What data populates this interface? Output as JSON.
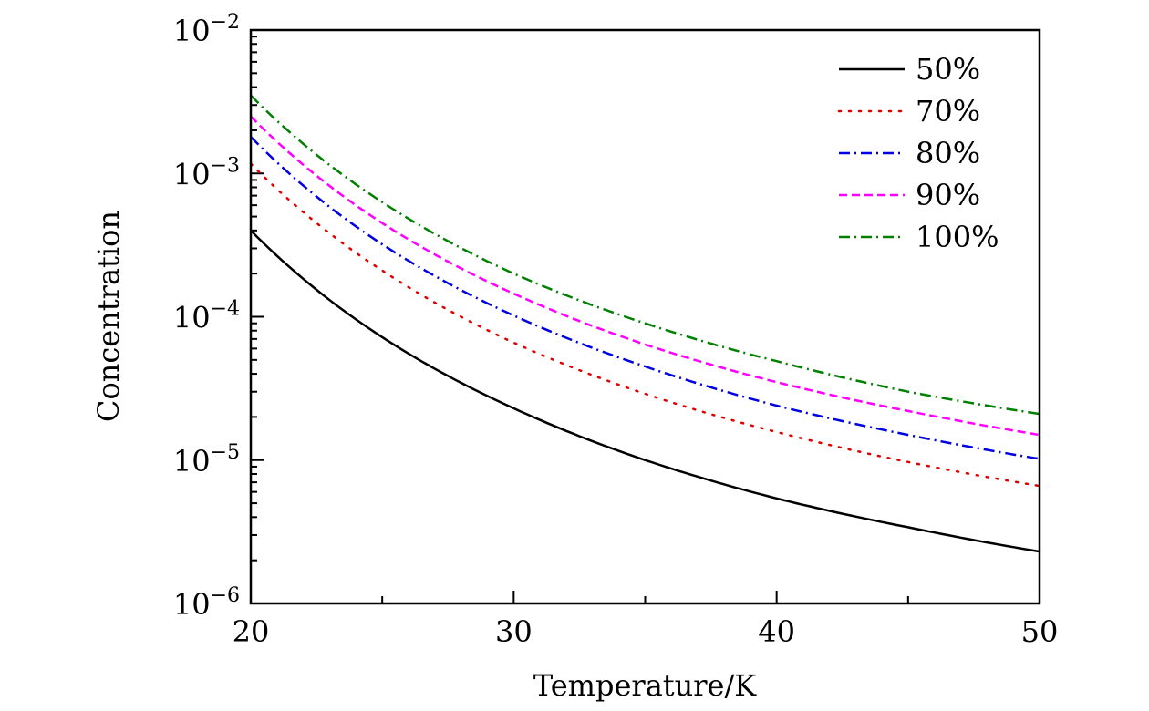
{
  "chart_data": {
    "type": "line",
    "title": "",
    "xlabel": "Temperature/K",
    "ylabel": "Concentration",
    "xlim": [
      20,
      50
    ],
    "ylim": [
      1e-06,
      0.01
    ],
    "yscale": "log",
    "x_ticks": [
      20,
      30,
      40,
      50
    ],
    "x_tick_labels": [
      "20",
      "30",
      "40",
      "50"
    ],
    "y_ticks": [
      -6,
      -5,
      -4,
      -3,
      -2
    ],
    "y_tick_labels": [
      {
        "base": "10",
        "exp": "−6"
      },
      {
        "base": "10",
        "exp": "−5"
      },
      {
        "base": "10",
        "exp": "−4"
      },
      {
        "base": "10",
        "exp": "−3"
      },
      {
        "base": "10",
        "exp": "−2"
      }
    ],
    "grid": false,
    "legend_position": "top-right",
    "x": [
      20,
      25,
      30,
      35,
      40,
      45,
      50
    ],
    "series": [
      {
        "name": "50%",
        "color": "#000000",
        "dash": "solid",
        "values": [
          0.0004,
          7.2e-05,
          2.3e-05,
          1e-05,
          5.4e-06,
          3.4e-06,
          2.3e-06
        ]
      },
      {
        "name": "70%",
        "color": "#e00000",
        "dash": "dot",
        "values": [
          0.00117,
          0.00021,
          6.6e-05,
          2.9e-05,
          1.57e-05,
          9.7e-06,
          6.6e-06
        ]
      },
      {
        "name": "80%",
        "color": "#0000e0",
        "dash": "dashdot",
        "values": [
          0.0018,
          0.00032,
          0.000102,
          4.5e-05,
          2.4e-05,
          1.5e-05,
          1.02e-05
        ]
      },
      {
        "name": "90%",
        "color": "#ff00ff",
        "dash": "dash",
        "values": [
          0.0025,
          0.00045,
          0.000145,
          6.4e-05,
          3.5e-05,
          2.2e-05,
          1.5e-05
        ]
      },
      {
        "name": "100%",
        "color": "#008000",
        "dash": "dashdot",
        "values": [
          0.0035,
          0.00063,
          0.0002,
          9e-05,
          4.9e-05,
          3e-05,
          2.1e-05
        ]
      }
    ]
  }
}
